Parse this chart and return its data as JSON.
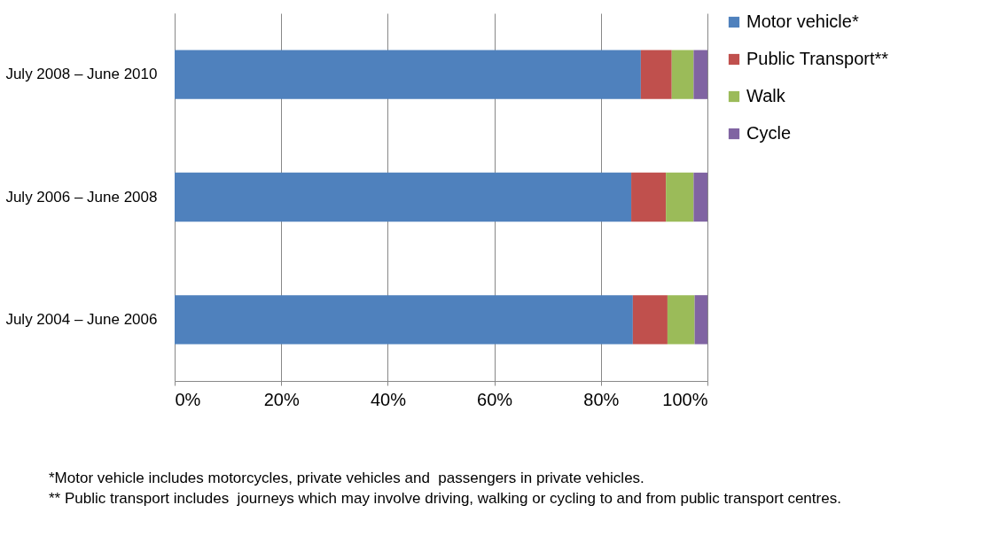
{
  "chart_data": {
    "type": "bar",
    "orientation": "horizontal",
    "stacked": true,
    "categories": [
      "July 2008 – June 2010",
      "July 2006 – June 2008",
      "July 2004 – June 2006"
    ],
    "series": [
      {
        "name": "Motor vehicle*",
        "color": "#4f81bd",
        "values": [
          87.5,
          85.7,
          86.0
        ]
      },
      {
        "name": "Public Transport**",
        "color": "#c0504d",
        "values": [
          5.8,
          6.5,
          6.5
        ]
      },
      {
        "name": "Walk",
        "color": "#9bbb59",
        "values": [
          4.1,
          5.2,
          5.1
        ]
      },
      {
        "name": "Cycle",
        "color": "#8064a2",
        "values": [
          2.6,
          2.6,
          2.4
        ]
      }
    ],
    "xlim": [
      0,
      100
    ],
    "xticks": [
      {
        "value": 0,
        "label": "0%"
      },
      {
        "value": 20,
        "label": "20%"
      },
      {
        "value": 40,
        "label": "40%"
      },
      {
        "value": 60,
        "label": "60%"
      },
      {
        "value": 80,
        "label": "80%"
      },
      {
        "value": 100,
        "label": "100%"
      }
    ],
    "grid": "x",
    "legend": "right",
    "annotations": [
      "*Motor vehicle includes motorcycles, private vehicles and  passengers in private vehicles.",
      "** Public transport includes  journeys which may involve driving, walking or cycling to and from public transport centres."
    ]
  }
}
